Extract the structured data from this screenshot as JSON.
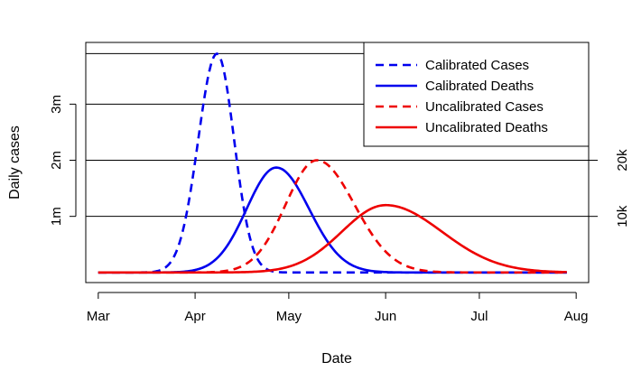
{
  "chart_data": {
    "type": "line",
    "title": "",
    "xlabel": "Date",
    "ylabel": "Daily cases",
    "x_ticks": [
      "Mar",
      "Apr",
      "May",
      "Jun",
      "Jul",
      "Aug"
    ],
    "x_tick_days": [
      0,
      31,
      61,
      92,
      122,
      153
    ],
    "xlim": [
      -4,
      157
    ],
    "ylim_left": [
      -180000,
      4100000
    ],
    "y_left_ticks": [
      "1m",
      "2m",
      "3m"
    ],
    "y_left_tick_values": [
      1000000,
      2000000,
      3000000
    ],
    "y_right_ticks": [
      "10k",
      "20k"
    ],
    "y_right_tick_values": [
      10000,
      20000
    ],
    "ylim_right": [
      -1800,
      41000
    ],
    "hlines_left": [
      1000000,
      2000000,
      3000000,
      3900000
    ],
    "legend_position": "top-right",
    "series": [
      {
        "name": "Calibrated Cases",
        "axis": "left",
        "color": "#0000ee",
        "dash": true,
        "peak_day": 38,
        "peak_value": 3900000,
        "sigma_left": 6,
        "sigma_right": 5.5,
        "baseline": 0
      },
      {
        "name": "Calibrated Deaths",
        "axis": "left",
        "color": "#0000ee",
        "dash": false,
        "peak_day": 57,
        "peak_value": 1870000,
        "sigma_left": 9.5,
        "sigma_right": 10.5,
        "baseline": 0
      },
      {
        "name": "Uncalibrated Cases",
        "axis": "left",
        "color": "#ee0000",
        "dash": true,
        "peak_day": 70,
        "peak_value": 2000000,
        "sigma_left": 10,
        "sigma_right": 12,
        "baseline": 0
      },
      {
        "name": "Uncalibrated Deaths",
        "axis": "left",
        "color": "#ee0000",
        "dash": false,
        "peak_day": 92,
        "peak_value": 1200000,
        "sigma_left": 14,
        "sigma_right": 18,
        "baseline": 0
      }
    ]
  }
}
